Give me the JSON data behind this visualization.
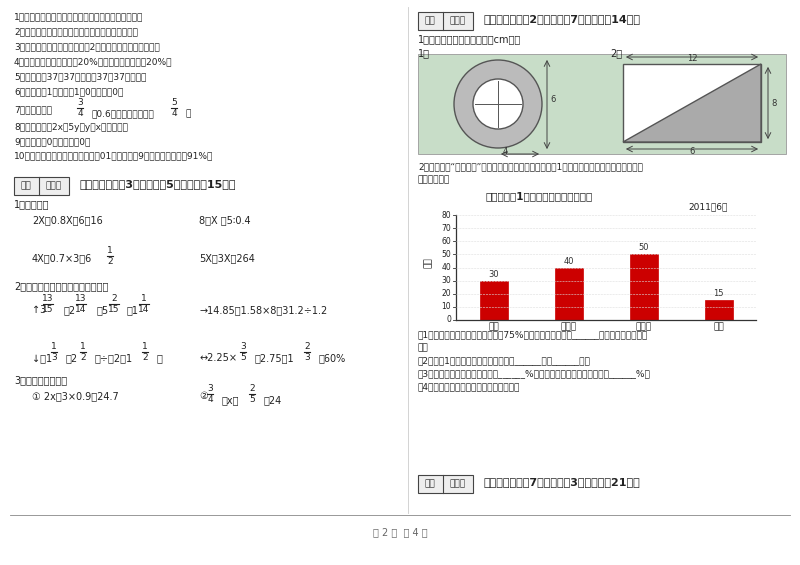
{
  "page_bg": "#ffffff",
  "judge_items": [
    "1．（　　）甲数除以乙数，等于甲数乘乙数的倒数。",
    "2．（　　）长方形的周长一定，长与宽成反比例。",
    "3．（　　）一个圆的半径扩大2倍，它的面积就扩大四倍。",
    "4．（　　）甲数比乙数少20%，那么乙数比甲数多20%。",
    "5．（　　）37是37的倍数，37是37的约数。",
    "6．（　　）1的倒数是1，0的倒数是0。"
  ],
  "item8": "8．（　　）剗2x＝5y，y与x成反比例。",
  "item9": "9．（　　）0的倒数还是0。",
  "item10": "10．（　　）六年级同学春季植树01棵，其中有9棵没活，成活率是91%。",
  "section4_title": "四、计算题（关3小题，每题5分，共计＀15分）",
  "section5_title": "五、综合题（关2小题，每题7分，共计＀14分）",
  "section6_title": "六、应用题（关7小题，每题3分，共计＀21分）",
  "bar_categories": [
    "汽车",
    "摩托车",
    "电动车",
    "行人"
  ],
  "bar_values": [
    30,
    40,
    50,
    15
  ],
  "bar_color": "#cc0000",
  "bar_ylim_max": 80,
  "bar_yticks": [
    0,
    10,
    20,
    30,
    40,
    50,
    60,
    70,
    80
  ],
  "bar_chart_title": "某十字路口1小时内闯红灯情况统计图",
  "bar_chart_year": "2011年6月",
  "bar_ylabel": "数量",
  "fig_bg": "#c8ddc8",
  "page_label": "第 2 页  共 4 页"
}
